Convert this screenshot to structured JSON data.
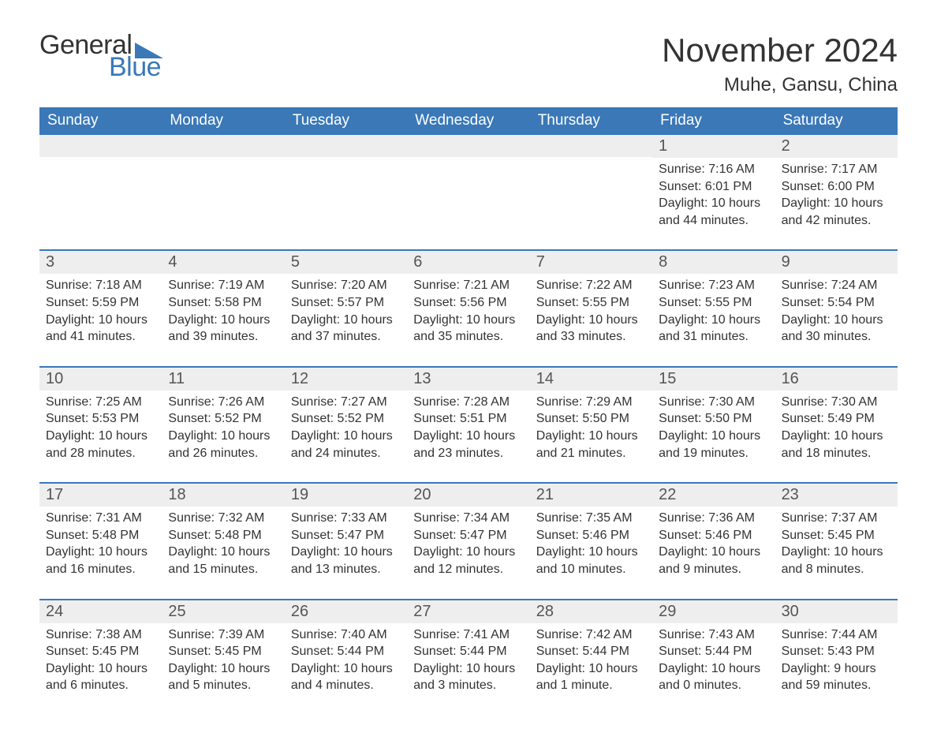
{
  "brand": {
    "word1": "General",
    "word2": "Blue",
    "accent_color": "#3a78b8"
  },
  "title": "November 2024",
  "location": "Muhe, Gansu, China",
  "colors": {
    "header_bg": "#3a78b8",
    "header_text": "#ffffff",
    "band_bg": "#eeeeee",
    "rule": "#3a78b8",
    "text": "#333333",
    "page_bg": "#ffffff"
  },
  "typography": {
    "title_fontsize": 42,
    "location_fontsize": 24,
    "dow_fontsize": 19,
    "daynum_fontsize": 20,
    "body_fontsize": 16
  },
  "days_of_week": [
    "Sunday",
    "Monday",
    "Tuesday",
    "Wednesday",
    "Thursday",
    "Friday",
    "Saturday"
  ],
  "labels": {
    "sunrise": "Sunrise: ",
    "sunset": "Sunset: ",
    "daylight": "Daylight: "
  },
  "weeks": [
    [
      null,
      null,
      null,
      null,
      null,
      {
        "n": "1",
        "sunrise": "7:16 AM",
        "sunset": "6:01 PM",
        "daylight": "10 hours and 44 minutes."
      },
      {
        "n": "2",
        "sunrise": "7:17 AM",
        "sunset": "6:00 PM",
        "daylight": "10 hours and 42 minutes."
      }
    ],
    [
      {
        "n": "3",
        "sunrise": "7:18 AM",
        "sunset": "5:59 PM",
        "daylight": "10 hours and 41 minutes."
      },
      {
        "n": "4",
        "sunrise": "7:19 AM",
        "sunset": "5:58 PM",
        "daylight": "10 hours and 39 minutes."
      },
      {
        "n": "5",
        "sunrise": "7:20 AM",
        "sunset": "5:57 PM",
        "daylight": "10 hours and 37 minutes."
      },
      {
        "n": "6",
        "sunrise": "7:21 AM",
        "sunset": "5:56 PM",
        "daylight": "10 hours and 35 minutes."
      },
      {
        "n": "7",
        "sunrise": "7:22 AM",
        "sunset": "5:55 PM",
        "daylight": "10 hours and 33 minutes."
      },
      {
        "n": "8",
        "sunrise": "7:23 AM",
        "sunset": "5:55 PM",
        "daylight": "10 hours and 31 minutes."
      },
      {
        "n": "9",
        "sunrise": "7:24 AM",
        "sunset": "5:54 PM",
        "daylight": "10 hours and 30 minutes."
      }
    ],
    [
      {
        "n": "10",
        "sunrise": "7:25 AM",
        "sunset": "5:53 PM",
        "daylight": "10 hours and 28 minutes."
      },
      {
        "n": "11",
        "sunrise": "7:26 AM",
        "sunset": "5:52 PM",
        "daylight": "10 hours and 26 minutes."
      },
      {
        "n": "12",
        "sunrise": "7:27 AM",
        "sunset": "5:52 PM",
        "daylight": "10 hours and 24 minutes."
      },
      {
        "n": "13",
        "sunrise": "7:28 AM",
        "sunset": "5:51 PM",
        "daylight": "10 hours and 23 minutes."
      },
      {
        "n": "14",
        "sunrise": "7:29 AM",
        "sunset": "5:50 PM",
        "daylight": "10 hours and 21 minutes."
      },
      {
        "n": "15",
        "sunrise": "7:30 AM",
        "sunset": "5:50 PM",
        "daylight": "10 hours and 19 minutes."
      },
      {
        "n": "16",
        "sunrise": "7:30 AM",
        "sunset": "5:49 PM",
        "daylight": "10 hours and 18 minutes."
      }
    ],
    [
      {
        "n": "17",
        "sunrise": "7:31 AM",
        "sunset": "5:48 PM",
        "daylight": "10 hours and 16 minutes."
      },
      {
        "n": "18",
        "sunrise": "7:32 AM",
        "sunset": "5:48 PM",
        "daylight": "10 hours and 15 minutes."
      },
      {
        "n": "19",
        "sunrise": "7:33 AM",
        "sunset": "5:47 PM",
        "daylight": "10 hours and 13 minutes."
      },
      {
        "n": "20",
        "sunrise": "7:34 AM",
        "sunset": "5:47 PM",
        "daylight": "10 hours and 12 minutes."
      },
      {
        "n": "21",
        "sunrise": "7:35 AM",
        "sunset": "5:46 PM",
        "daylight": "10 hours and 10 minutes."
      },
      {
        "n": "22",
        "sunrise": "7:36 AM",
        "sunset": "5:46 PM",
        "daylight": "10 hours and 9 minutes."
      },
      {
        "n": "23",
        "sunrise": "7:37 AM",
        "sunset": "5:45 PM",
        "daylight": "10 hours and 8 minutes."
      }
    ],
    [
      {
        "n": "24",
        "sunrise": "7:38 AM",
        "sunset": "5:45 PM",
        "daylight": "10 hours and 6 minutes."
      },
      {
        "n": "25",
        "sunrise": "7:39 AM",
        "sunset": "5:45 PM",
        "daylight": "10 hours and 5 minutes."
      },
      {
        "n": "26",
        "sunrise": "7:40 AM",
        "sunset": "5:44 PM",
        "daylight": "10 hours and 4 minutes."
      },
      {
        "n": "27",
        "sunrise": "7:41 AM",
        "sunset": "5:44 PM",
        "daylight": "10 hours and 3 minutes."
      },
      {
        "n": "28",
        "sunrise": "7:42 AM",
        "sunset": "5:44 PM",
        "daylight": "10 hours and 1 minute."
      },
      {
        "n": "29",
        "sunrise": "7:43 AM",
        "sunset": "5:44 PM",
        "daylight": "10 hours and 0 minutes."
      },
      {
        "n": "30",
        "sunrise": "7:44 AM",
        "sunset": "5:43 PM",
        "daylight": "9 hours and 59 minutes."
      }
    ]
  ]
}
